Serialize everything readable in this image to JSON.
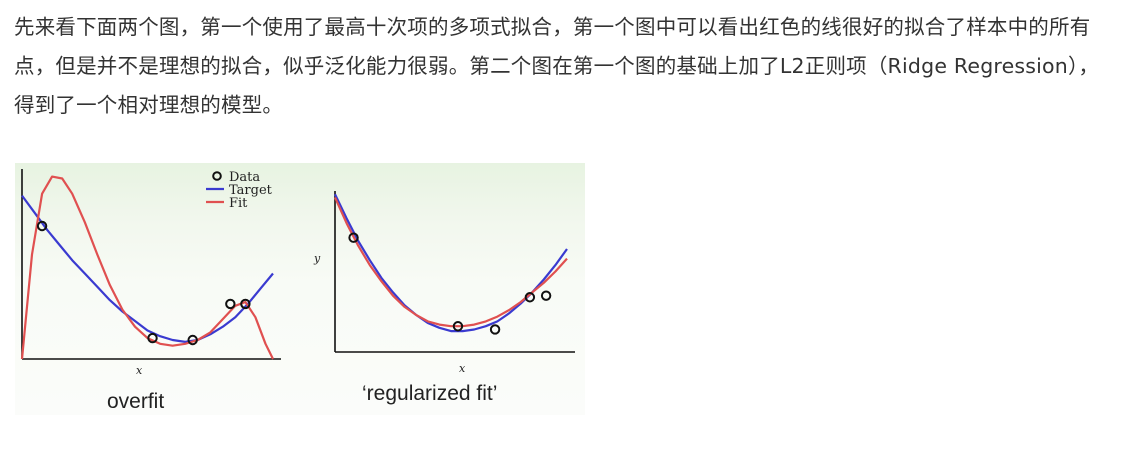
{
  "paragraph": "先来看下面两个图，第一个使用了最高十次项的多项式拟合，第一个图中可以看出红色的线很好的拟合了样本中的所有点，但是并不是理想的拟合，似乎泛化能力很弱。第二个图在第一个图的基础上加了L2正则项（Ridge Regression），得到了一个相对理想的模型。",
  "colors": {
    "target": "#3a3ad0",
    "fit": "#e05050",
    "data_marker": "#111111"
  },
  "chart_data": [
    {
      "type": "line",
      "caption": "overfit",
      "xlabel": "x",
      "ylabel": "",
      "legend": {
        "placement": "top-right",
        "entries": [
          "Data",
          "Target",
          "Fit"
        ]
      },
      "xlim": [
        0,
        1
      ],
      "ylim": [
        0,
        1
      ],
      "points": [
        {
          "x": 0.08,
          "y": 0.7
        },
        {
          "x": 0.52,
          "y": 0.11
        },
        {
          "x": 0.68,
          "y": 0.1
        },
        {
          "x": 0.83,
          "y": 0.29
        },
        {
          "x": 0.89,
          "y": 0.29
        }
      ],
      "series": [
        {
          "name": "Target",
          "x": [
            0.0,
            0.05,
            0.1,
            0.15,
            0.2,
            0.25,
            0.3,
            0.35,
            0.4,
            0.45,
            0.5,
            0.55,
            0.6,
            0.65,
            0.7,
            0.75,
            0.8,
            0.85,
            0.9,
            0.95,
            1.0
          ],
          "y": [
            0.86,
            0.77,
            0.68,
            0.6,
            0.52,
            0.45,
            0.38,
            0.31,
            0.25,
            0.2,
            0.15,
            0.12,
            0.1,
            0.09,
            0.1,
            0.13,
            0.17,
            0.22,
            0.29,
            0.37,
            0.45
          ]
        },
        {
          "name": "Fit",
          "x": [
            0.0,
            0.04,
            0.08,
            0.12,
            0.16,
            0.2,
            0.25,
            0.3,
            0.35,
            0.4,
            0.45,
            0.5,
            0.55,
            0.6,
            0.65,
            0.7,
            0.75,
            0.8,
            0.85,
            0.89,
            0.93,
            0.97,
            1.0
          ],
          "y": [
            0.0,
            0.55,
            0.87,
            0.96,
            0.95,
            0.87,
            0.72,
            0.55,
            0.39,
            0.26,
            0.17,
            0.11,
            0.08,
            0.07,
            0.08,
            0.1,
            0.14,
            0.21,
            0.28,
            0.3,
            0.22,
            0.08,
            0.0
          ]
        }
      ]
    },
    {
      "type": "line",
      "caption": "‘regularized fit’",
      "xlabel": "x",
      "ylabel": "y",
      "legend": null,
      "xlim": [
        0,
        1
      ],
      "ylim": [
        0,
        1
      ],
      "points": [
        {
          "x": 0.08,
          "y": 0.71
        },
        {
          "x": 0.53,
          "y": 0.16
        },
        {
          "x": 0.69,
          "y": 0.14
        },
        {
          "x": 0.84,
          "y": 0.34
        },
        {
          "x": 0.91,
          "y": 0.35
        }
      ],
      "series": [
        {
          "name": "Target",
          "x": [
            0.0,
            0.05,
            0.1,
            0.15,
            0.2,
            0.25,
            0.3,
            0.35,
            0.4,
            0.45,
            0.5,
            0.55,
            0.6,
            0.65,
            0.7,
            0.75,
            0.8,
            0.85,
            0.9,
            0.95,
            1.0
          ],
          "y": [
            0.98,
            0.83,
            0.69,
            0.57,
            0.46,
            0.37,
            0.29,
            0.23,
            0.18,
            0.15,
            0.13,
            0.13,
            0.14,
            0.16,
            0.19,
            0.24,
            0.3,
            0.37,
            0.45,
            0.54,
            0.64
          ]
        },
        {
          "name": "Fit",
          "x": [
            0.0,
            0.05,
            0.1,
            0.15,
            0.2,
            0.25,
            0.3,
            0.35,
            0.4,
            0.45,
            0.5,
            0.55,
            0.6,
            0.65,
            0.7,
            0.75,
            0.8,
            0.85,
            0.9,
            0.95,
            1.0
          ],
          "y": [
            0.96,
            0.8,
            0.66,
            0.54,
            0.44,
            0.35,
            0.28,
            0.23,
            0.19,
            0.17,
            0.16,
            0.16,
            0.17,
            0.19,
            0.22,
            0.26,
            0.31,
            0.37,
            0.43,
            0.5,
            0.58
          ]
        }
      ]
    }
  ]
}
